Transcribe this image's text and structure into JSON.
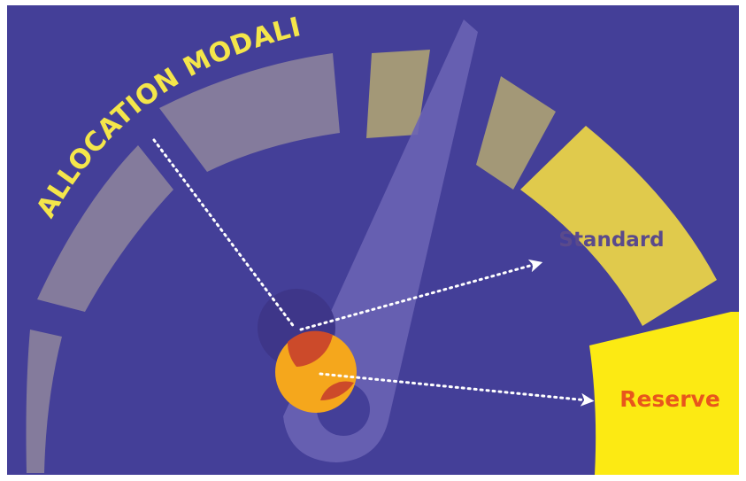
{
  "diagram": {
    "title": "ALLOCATION MODALITIES",
    "segments": [
      {
        "id": "reserve",
        "label": "Reserve",
        "fill": "#fcea13",
        "label_color": "#e8561c"
      },
      {
        "id": "standard",
        "label": "Standard",
        "fill": "#e0ca4c",
        "label_color": "#5a4a8c"
      }
    ],
    "colors": {
      "background": "#443f98",
      "frame": "#ffffff",
      "inactive_segment": "#847b9c",
      "muted_segment": "#a39877",
      "needle": "#6a63b4",
      "title": "#f4e64a",
      "pointer_purple": "#3e3689",
      "pointer_red": "#cc4a2a",
      "pointer_orange": "#f5a71c",
      "arrow": "#ffffff"
    }
  }
}
